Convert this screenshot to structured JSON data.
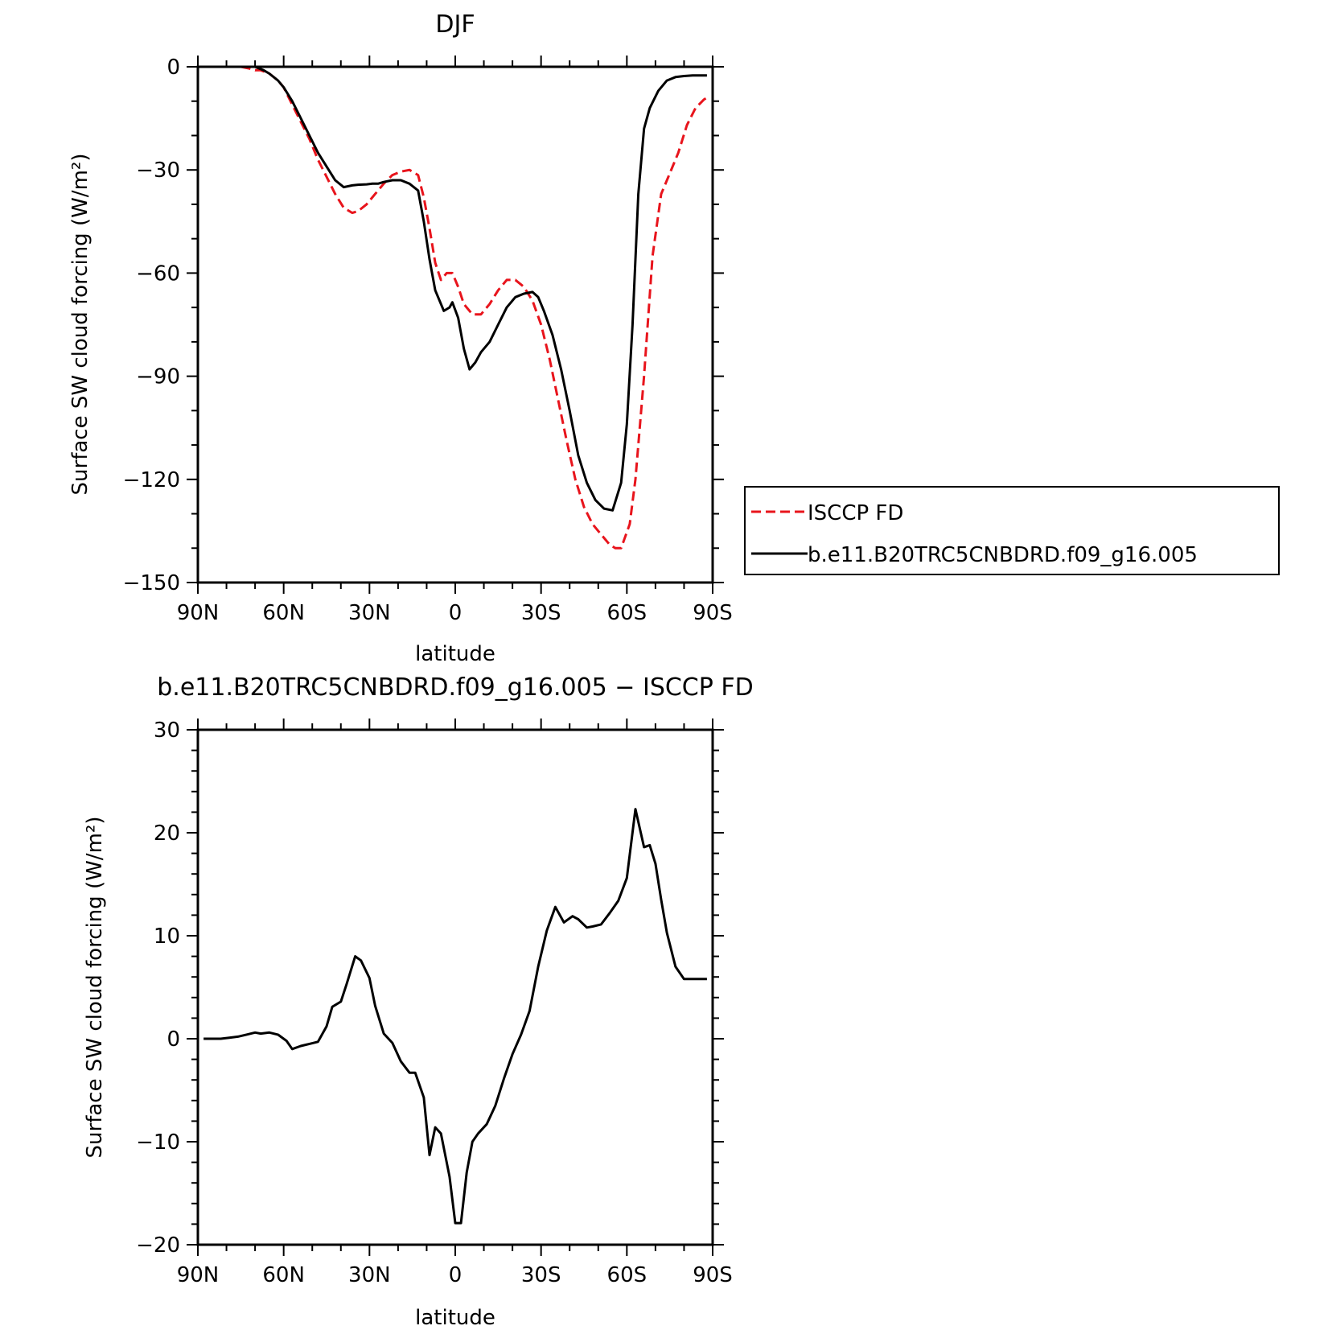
{
  "chart_data": [
    {
      "type": "line",
      "title": "DJF",
      "xlabel": "latitude",
      "ylabel": "Surface SW cloud forcing (W/m²)",
      "xlim": [
        90,
        -90
      ],
      "ylim": [
        -150,
        0
      ],
      "xticks": [
        90,
        60,
        30,
        0,
        -30,
        -60,
        -90
      ],
      "xtick_labels": [
        "90N",
        "60N",
        "30N",
        "0",
        "30S",
        "60S",
        "90S"
      ],
      "yticks": [
        0,
        -30,
        -60,
        -90,
        -120,
        -150
      ],
      "ytick_labels": [
        "0",
        "−30",
        "−60",
        "−90",
        "−120",
        "−150"
      ],
      "legend_position": "right",
      "series": [
        {
          "name": "ISCCP FD",
          "color": "#e8141c",
          "style": "dashed",
          "x": [
            80,
            75,
            72,
            70,
            68,
            65,
            62,
            60,
            57,
            54,
            51,
            48,
            45,
            42,
            39,
            36,
            34,
            31,
            28,
            25,
            22,
            19,
            16,
            13,
            11,
            9,
            7,
            5,
            3,
            1,
            -1,
            -3,
            -6,
            -9,
            -12,
            -15,
            -18,
            -21,
            -24,
            -27,
            -30,
            -33,
            -36,
            -39,
            -42,
            -45,
            -48,
            -51,
            -54,
            -56,
            -58,
            -61,
            -63,
            -66,
            -69,
            -72,
            -75,
            -78,
            -81,
            -84,
            -87,
            -89
          ],
          "y": [
            0,
            0,
            -0.5,
            -1,
            -1,
            -2,
            -4,
            -6,
            -11,
            -16,
            -21,
            -27,
            -32,
            -37,
            -41,
            -42.5,
            -42,
            -40,
            -37,
            -34,
            -31.5,
            -30.5,
            -30,
            -31.5,
            -38,
            -47,
            -57,
            -62,
            -60,
            -60,
            -64,
            -69,
            -72,
            -72,
            -69,
            -65,
            -62,
            -62,
            -64,
            -68,
            -75,
            -85,
            -97,
            -109,
            -120,
            -128,
            -133,
            -136,
            -139,
            -140,
            -140,
            -133,
            -120,
            -90,
            -55,
            -37,
            -31,
            -25,
            -17,
            -12,
            -9.5,
            -8.5
          ]
        },
        {
          "name": "b.e11.B20TRC5CNBDRD.f09_g16.005",
          "color": "#000000",
          "style": "solid",
          "x": [
            80,
            75,
            70,
            67,
            65,
            62,
            60,
            57,
            54,
            51,
            48,
            45,
            42,
            39,
            36,
            34,
            31,
            29,
            27,
            25,
            22,
            19,
            16,
            13,
            11,
            9,
            7,
            4,
            2,
            1,
            -1,
            -3,
            -5,
            -7,
            -9,
            -12,
            -15,
            -18,
            -21,
            -24,
            -27,
            -29,
            -31,
            -34,
            -37,
            -40,
            -43,
            -46,
            -49,
            -52,
            -55,
            -58,
            -60,
            -62,
            -64,
            -66,
            -68,
            -71,
            -74,
            -77,
            -80,
            -83,
            -86,
            -88
          ],
          "y": [
            0,
            0,
            0,
            -1,
            -2,
            -4,
            -6,
            -10,
            -15,
            -20,
            -25,
            -29,
            -33,
            -35,
            -34.5,
            -34.3,
            -34.2,
            -34,
            -34,
            -33.5,
            -33,
            -33,
            -34,
            -36,
            -45,
            -56,
            -65,
            -71,
            -70,
            -68.5,
            -73,
            -82,
            -88,
            -86,
            -83,
            -80,
            -75,
            -70,
            -67,
            -66,
            -65.5,
            -67,
            -71,
            -78,
            -88,
            -100,
            -113,
            -121,
            -126,
            -128.5,
            -129,
            -121,
            -104,
            -75,
            -37,
            -18,
            -12,
            -7,
            -4,
            -3,
            -2.7,
            -2.5,
            -2.5,
            -2.5
          ]
        }
      ]
    },
    {
      "type": "line",
      "title": "b.e11.B20TRC5CNBDRD.f09_g16.005 − ISCCP FD",
      "xlabel": "latitude",
      "ylabel": "Surface SW cloud forcing (W/m²)",
      "xlim": [
        90,
        -90
      ],
      "ylim": [
        -20,
        30
      ],
      "xticks": [
        90,
        60,
        30,
        0,
        -30,
        -60,
        -90
      ],
      "xtick_labels": [
        "90N",
        "60N",
        "30N",
        "0",
        "30S",
        "60S",
        "90S"
      ],
      "yticks": [
        30,
        20,
        10,
        0,
        -10,
        -20
      ],
      "ytick_labels": [
        "30",
        "20",
        "10",
        "0",
        "−10",
        "−20"
      ],
      "series": [
        {
          "color": "#000000",
          "style": "solid",
          "x": [
            88,
            85,
            82,
            79,
            76,
            73,
            70,
            68,
            65,
            62,
            59,
            57,
            54,
            51,
            48,
            45,
            43,
            40,
            38,
            35,
            33,
            30,
            28,
            25,
            22,
            19,
            16,
            14,
            11,
            9,
            7,
            5,
            2,
            0,
            -2,
            -4,
            -6,
            -8,
            -11,
            -14,
            -17,
            -20,
            -23,
            -26,
            -29,
            -32,
            -35,
            -38,
            -41,
            -43,
            -46,
            -48,
            -51,
            -54,
            -57,
            -60,
            -63,
            -66,
            -68,
            -70,
            -72,
            -74,
            -77,
            -80,
            -83,
            -86,
            -88
          ],
          "y": [
            0,
            0,
            0,
            0.1,
            0.2,
            0.4,
            0.6,
            0.5,
            0.6,
            0.4,
            -0.2,
            -1.0,
            -0.7,
            -0.5,
            -0.3,
            1.2,
            3.1,
            3.6,
            5.3,
            8.0,
            7.6,
            5.9,
            3.2,
            0.5,
            -0.4,
            -2.2,
            -3.3,
            -3.3,
            -5.7,
            -11.3,
            -8.6,
            -9.2,
            -13.4,
            -17.9,
            -17.9,
            -13.0,
            -10.0,
            -9.2,
            -8.3,
            -6.5,
            -3.9,
            -1.5,
            0.4,
            2.7,
            7.0,
            10.5,
            12.8,
            11.3,
            11.9,
            11.6,
            10.8,
            10.9,
            11.1,
            12.2,
            13.4,
            15.6,
            22.3,
            18.6,
            18.8,
            17.0,
            13.5,
            10.3,
            7.0,
            5.8,
            5.8,
            5.8,
            5.8
          ]
        }
      ]
    }
  ]
}
